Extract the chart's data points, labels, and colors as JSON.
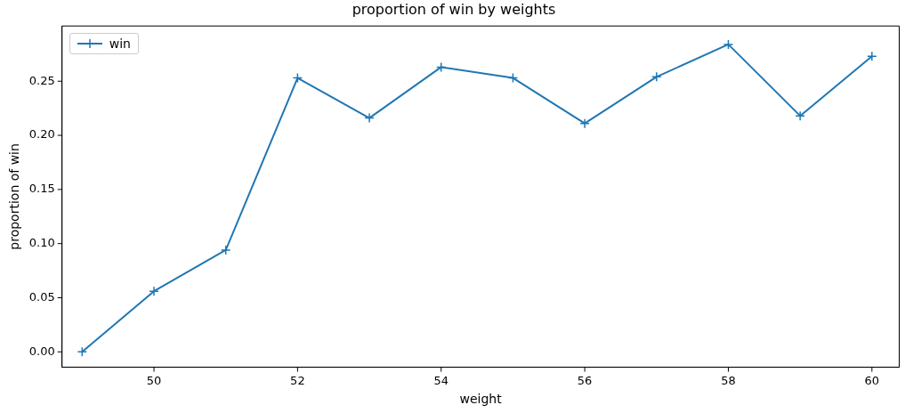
{
  "chart_data": {
    "type": "line",
    "title": "proportion of win by weights",
    "xlabel": "weight",
    "ylabel": "proportion of win",
    "x": [
      49,
      50,
      51,
      52,
      53,
      54,
      55,
      56,
      57,
      58,
      59,
      60
    ],
    "series": [
      {
        "name": "win",
        "color": "#1f77b4",
        "values": [
          0,
          0.056,
          0.094,
          0.253,
          0.216,
          0.263,
          0.253,
          0.211,
          0.254,
          0.284,
          0.218,
          0.273
        ]
      }
    ],
    "xlim": [
      48.72,
      60.38
    ],
    "xticks": [
      50,
      52,
      54,
      56,
      58,
      60
    ],
    "ylim": [
      -0.0142,
      0.301
    ],
    "yticks": [
      {
        "value": 0,
        "label": "0.00"
      },
      {
        "value": 0.05,
        "label": "0.05"
      },
      {
        "value": 0.1,
        "label": "0.10"
      },
      {
        "value": 0.15,
        "label": "0.15"
      },
      {
        "value": 0.2,
        "label": "0.20"
      },
      {
        "value": 0.25,
        "label": "0.25"
      }
    ],
    "marker": "cross",
    "line_style": "solid",
    "legend": "top left",
    "grid": false
  }
}
